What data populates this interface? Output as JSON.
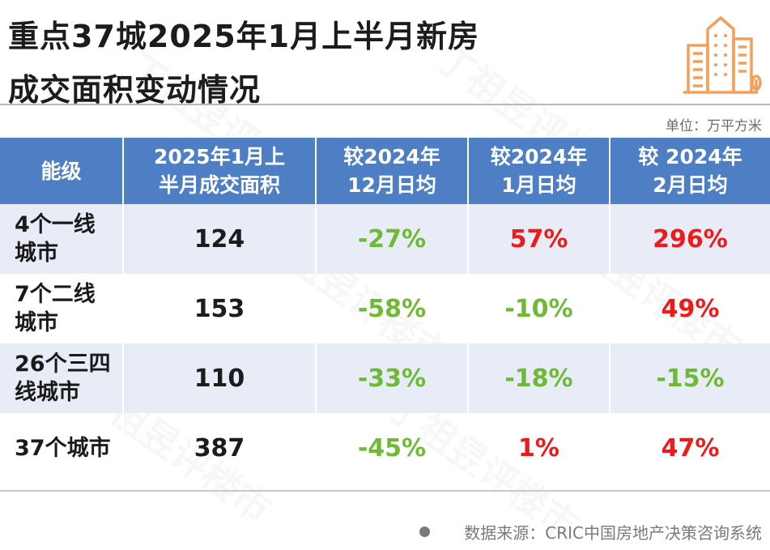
{
  "title": {
    "line1": "重点37城2025年1月上半月新房",
    "line2": "成交面积变动情况"
  },
  "unit_label": "单位：万平方米",
  "table": {
    "headers": [
      [
        "能级"
      ],
      [
        "2025年1月上",
        "半月成交面积"
      ],
      [
        "较2024年",
        "12月日均"
      ],
      [
        "较2024年",
        "1月日均"
      ],
      [
        "较 2024年",
        "2月日均"
      ]
    ],
    "rows": [
      {
        "city": [
          "4个一线",
          "城市"
        ],
        "area": "124",
        "vs_dec": "-27%",
        "vs_jan": "57%",
        "vs_feb": "296%"
      },
      {
        "city": [
          "7个二线",
          "城市"
        ],
        "area": "153",
        "vs_dec": "-58%",
        "vs_jan": "-10%",
        "vs_feb": "49%"
      },
      {
        "city": [
          "26个三四",
          "线城市"
        ],
        "area": "110",
        "vs_dec": "-33%",
        "vs_jan": "-18%",
        "vs_feb": "-15%"
      },
      {
        "city": [
          "37个城市"
        ],
        "area": "387",
        "vs_dec": "-45%",
        "vs_jan": "1%",
        "vs_feb": "47%"
      }
    ]
  },
  "source": "数据来源：CRIC中国房地产决策咨询系统",
  "colors": {
    "header_bg": "#4e7ec4",
    "row_shade": "#e7ecf6",
    "negative": "#6fba35",
    "positive": "#ef1a1a",
    "logo_orange": "#f2a05a"
  },
  "icons": {
    "logo": "city-buildings-icon"
  }
}
